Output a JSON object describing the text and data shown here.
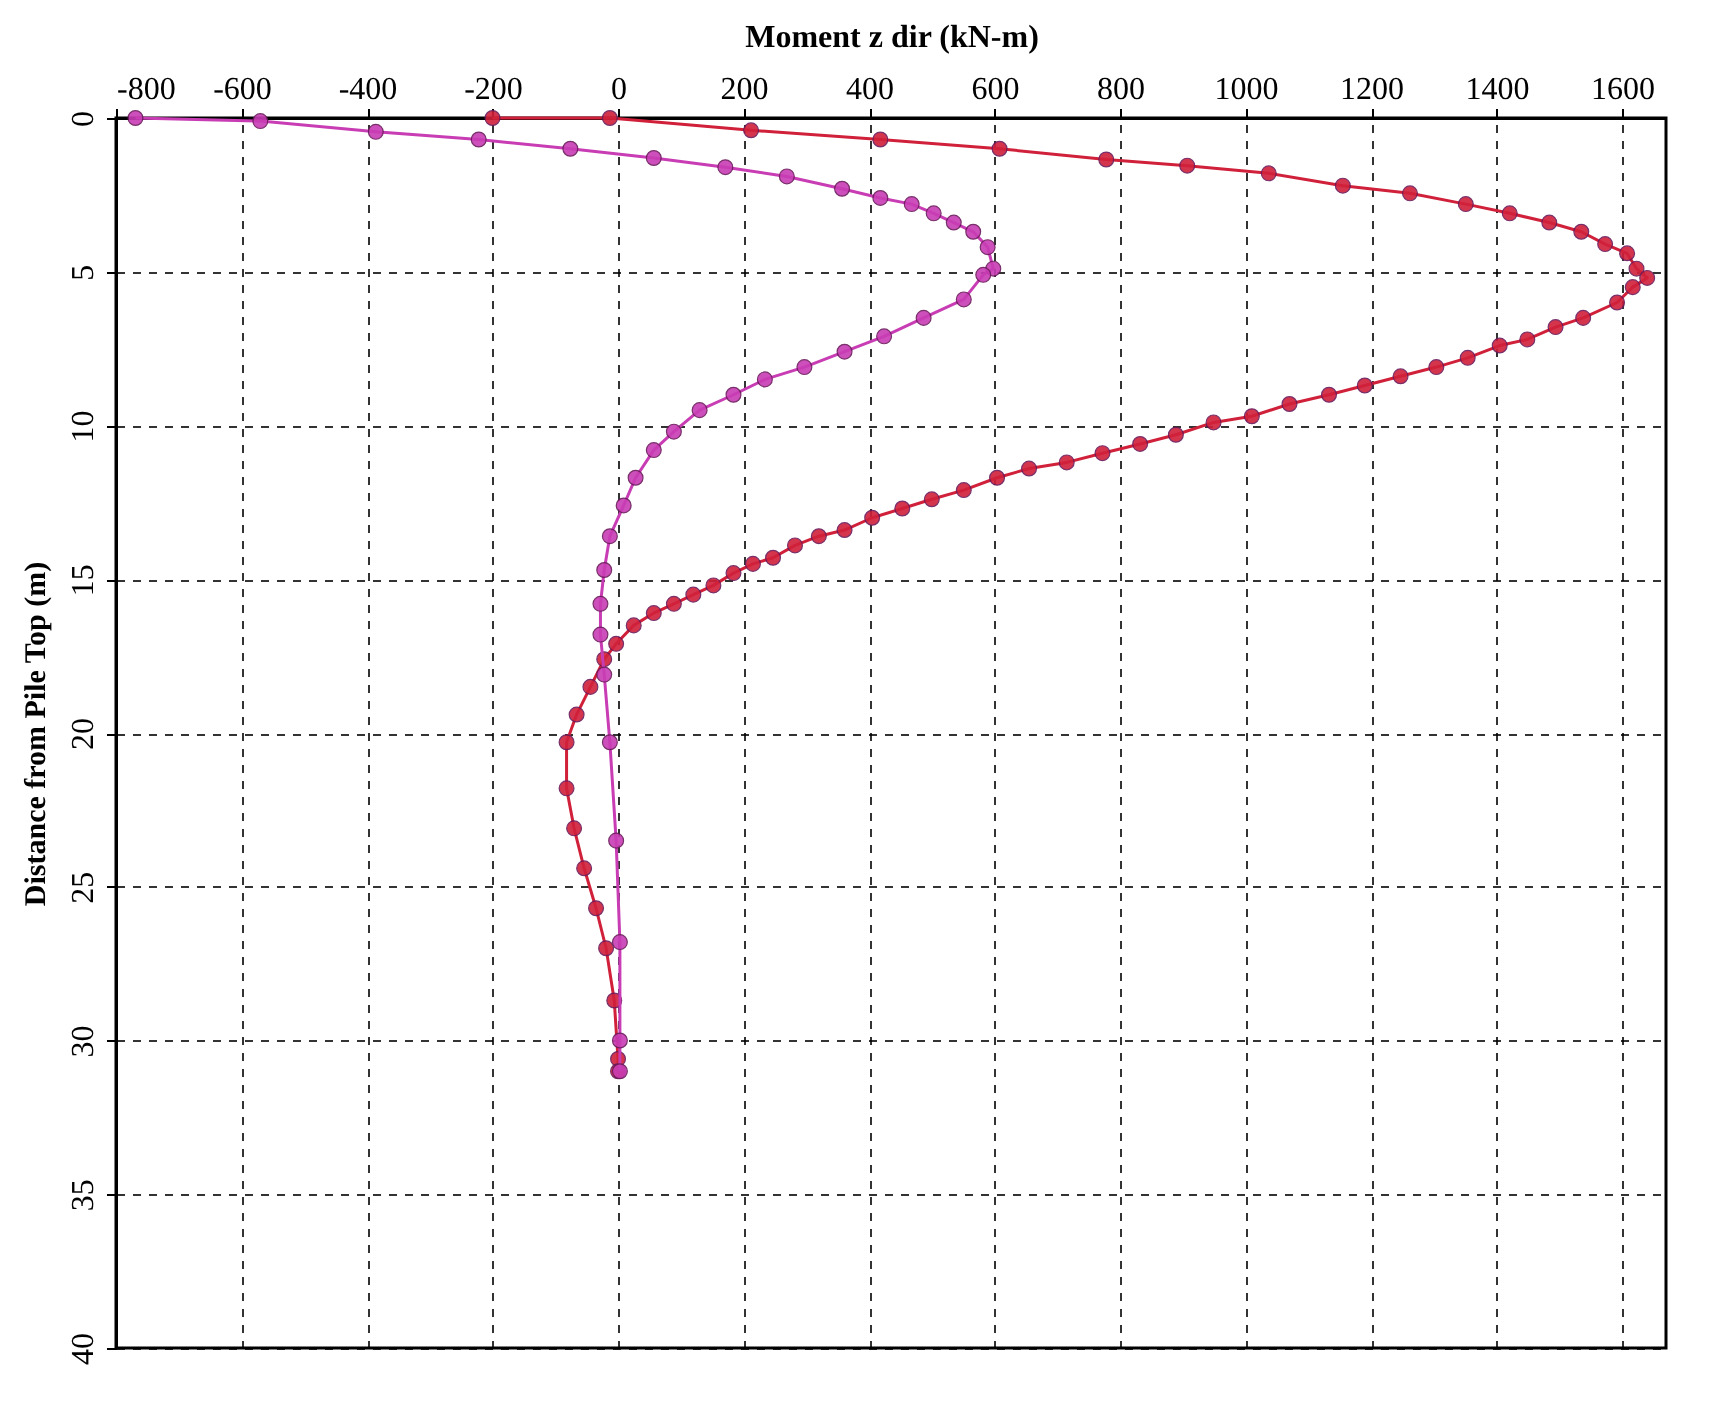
{
  "chart_data": {
    "type": "line",
    "xlabel": "Moment z dir (kN-m)",
    "ylabel": "Distance from Pile Top (m)",
    "xlim": [
      -800,
      1670
    ],
    "xticks": [
      -800,
      -600,
      -400,
      -200,
      0,
      200,
      400,
      600,
      800,
      1000,
      1200,
      1400,
      1600
    ],
    "ylim": [
      40,
      0
    ],
    "yticks": [
      0,
      5,
      10,
      15,
      20,
      25,
      30,
      35,
      40
    ],
    "grid": true,
    "marker": "circle",
    "line_style": "solid",
    "series": [
      {
        "color": "#d0203a",
        "x": [
          -200,
          -13,
          212,
          418,
          608,
          778,
          907,
          1037,
          1155,
          1262,
          1351,
          1421,
          1484,
          1535,
          1573,
          1608,
          1623,
          1640,
          1617,
          1592,
          1538,
          1494,
          1449,
          1405,
          1354,
          1304,
          1247,
          1190,
          1133,
          1070,
          1010,
          949,
          889,
          832,
          772,
          715,
          655,
          604,
          551,
          500,
          453,
          405,
          361,
          320,
          282,
          247,
          215,
          184,
          152,
          120,
          89,
          57,
          25,
          -3,
          -22,
          -44,
          -66,
          -82,
          -82,
          -70,
          -54,
          -35,
          -19,
          -6,
          0,
          0
        ],
        "values": [
          0,
          0,
          0.4,
          0.7,
          1.0,
          1.35,
          1.55,
          1.8,
          2.2,
          2.45,
          2.8,
          3.1,
          3.4,
          3.7,
          4.1,
          4.4,
          4.9,
          5.2,
          5.5,
          6.0,
          6.5,
          6.8,
          7.2,
          7.4,
          7.8,
          8.1,
          8.4,
          8.7,
          9.0,
          9.3,
          9.7,
          9.9,
          10.3,
          10.6,
          10.9,
          11.2,
          11.4,
          11.7,
          12.1,
          12.4,
          12.7,
          13.0,
          13.4,
          13.6,
          13.9,
          14.3,
          14.5,
          14.8,
          15.2,
          15.5,
          15.8,
          16.1,
          16.5,
          17.1,
          17.6,
          18.5,
          19.4,
          20.3,
          21.8,
          23.1,
          24.4,
          25.7,
          27.0,
          28.7,
          30.6,
          31
        ]
      },
      {
        "color": "#c83cb4",
        "x": [
          -769,
          -570,
          -386,
          -222,
          -76,
          57,
          171,
          269,
          357,
          418,
          468,
          503,
          535,
          566,
          589,
          598,
          582,
          551,
          487,
          424,
          361,
          297,
          234,
          184,
          130,
          89,
          57,
          28,
          9,
          -13,
          -22,
          -28,
          -28,
          -22,
          -13,
          -3,
          3,
          3,
          3
        ],
        "values": [
          0,
          0.1,
          0.45,
          0.7,
          1.0,
          1.3,
          1.6,
          1.9,
          2.3,
          2.6,
          2.8,
          3.1,
          3.4,
          3.7,
          4.2,
          4.9,
          5.1,
          5.9,
          6.5,
          7.1,
          7.6,
          8.1,
          8.5,
          9.0,
          9.5,
          10.2,
          10.8,
          11.7,
          12.6,
          13.6,
          14.7,
          15.8,
          16.8,
          18.1,
          20.3,
          23.5,
          26.8,
          30,
          31
        ]
      }
    ]
  }
}
